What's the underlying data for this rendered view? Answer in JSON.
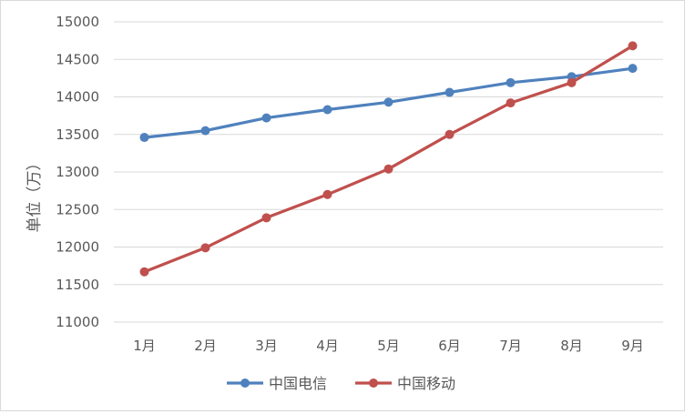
{
  "chart_data": {
    "type": "line",
    "title": "",
    "xlabel": "",
    "ylabel": "单位（万）",
    "categories": [
      "1月",
      "2月",
      "3月",
      "4月",
      "5月",
      "6月",
      "7月",
      "8月",
      "9月"
    ],
    "ylim": [
      11000,
      15000
    ],
    "yticks": [
      11000,
      11500,
      12000,
      12500,
      13000,
      13500,
      14000,
      14500,
      15000
    ],
    "grid": true,
    "legend_position": "bottom",
    "series": [
      {
        "name": "中国电信",
        "color": "#4f81bd",
        "values": [
          13460,
          13550,
          13720,
          13830,
          13930,
          14060,
          14190,
          14270,
          14380
        ]
      },
      {
        "name": "中国移动",
        "color": "#c0504d",
        "values": [
          11670,
          11990,
          12390,
          12700,
          13040,
          13500,
          13920,
          14190,
          14680
        ]
      }
    ]
  }
}
